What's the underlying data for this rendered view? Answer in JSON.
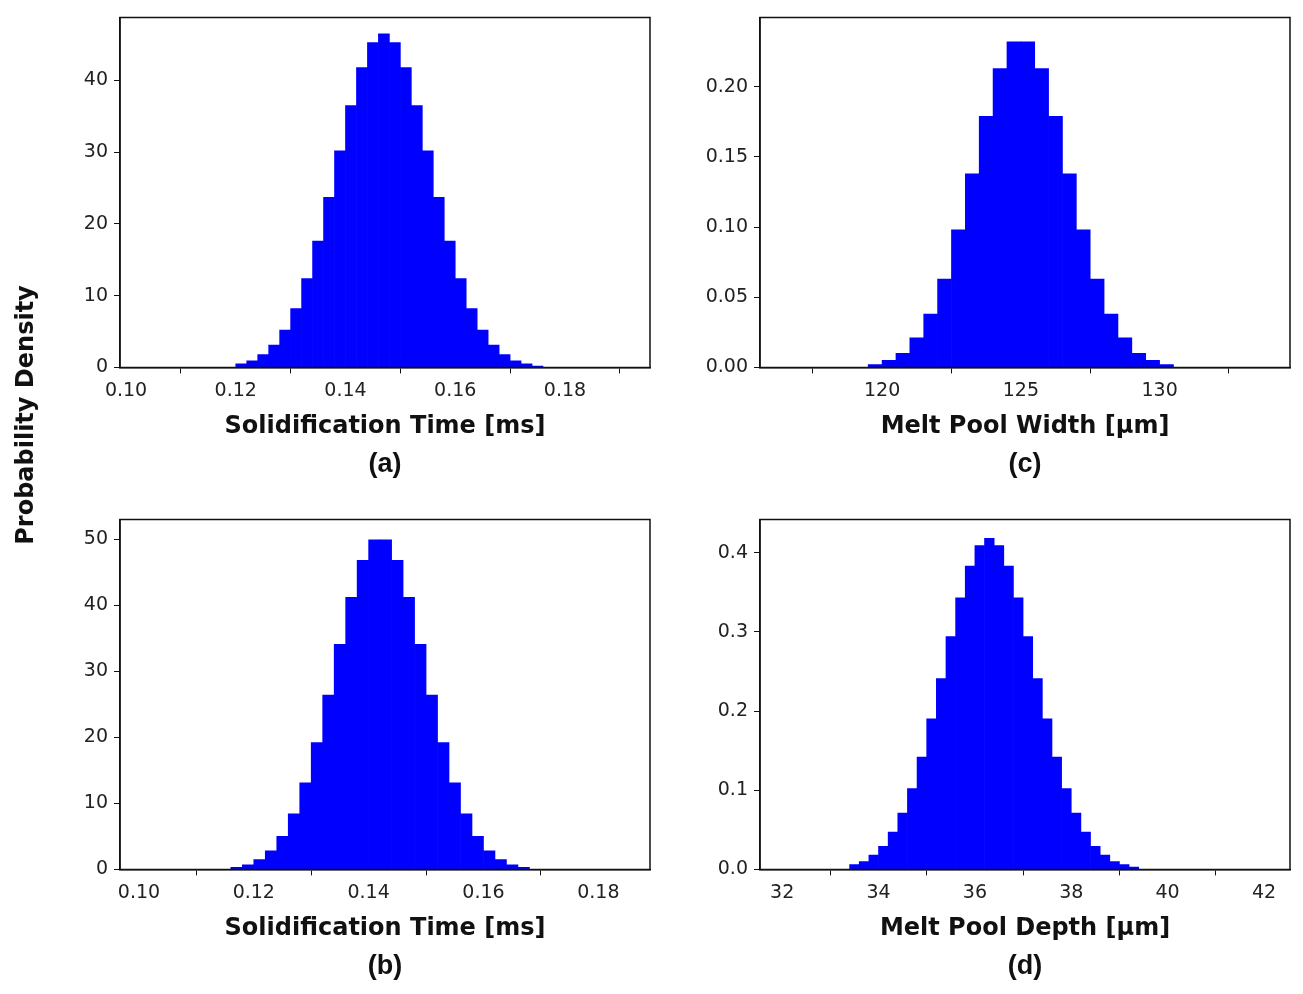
{
  "chart_data": [
    {
      "type": "histogram",
      "ylabel": "Probability Density",
      "xlabel": "Solidification Time [ms]",
      "annotations": [
        "(a)"
      ],
      "color": "#0000ff",
      "grid": false,
      "legend": false,
      "bins": [
        0.12,
        0.122,
        0.124,
        0.126,
        0.128,
        0.13,
        0.132,
        0.134,
        0.136,
        0.138,
        0.14,
        0.142,
        0.144,
        0.146,
        0.148,
        0.15,
        0.152,
        0.154,
        0.156,
        0.158,
        0.16,
        0.162,
        0.164,
        0.166,
        0.168,
        0.17,
        0.172,
        0.174,
        0.176
      ],
      "values": [
        0.5,
        0.9,
        1.8,
        3.1,
        5.2,
        8.2,
        12.4,
        17.6,
        23.7,
        30.2,
        36.5,
        41.8,
        45.3,
        46.5,
        45.3,
        41.8,
        36.5,
        30.2,
        23.7,
        17.6,
        12.4,
        8.2,
        5.2,
        3.1,
        1.8,
        0.9,
        0.5,
        0.2
      ],
      "xlim": [
        0.0989,
        0.1955
      ],
      "xticks": [
        {
          "value": 0.1,
          "label": "0.10"
        },
        0.12,
        0.14,
        0.16,
        0.18
      ],
      "ylim": [
        0,
        48.8
      ],
      "yticks": [
        0,
        10,
        20,
        30,
        40
      ]
    },
    {
      "type": "histogram",
      "xlabel": "Melt Pool Width [µm]",
      "annotations": [
        "(c)"
      ],
      "color": "#0000ff",
      "grid": false,
      "legend": false,
      "bins": [
        119.5,
        120,
        120.5,
        121,
        121.5,
        122,
        122.5,
        123,
        123.5,
        124,
        124.5,
        125,
        125.5,
        126,
        126.5,
        127,
        127.5,
        128,
        128.5,
        129,
        129.5,
        130,
        130.5
      ],
      "values": [
        0.002,
        0.005,
        0.01,
        0.021,
        0.038,
        0.063,
        0.098,
        0.138,
        0.179,
        0.213,
        0.232,
        0.232,
        0.213,
        0.179,
        0.138,
        0.098,
        0.063,
        0.038,
        0.021,
        0.01,
        0.005,
        0.002
      ],
      "xlim": [
        115.6,
        134.7
      ],
      "xticks": [
        120,
        125,
        130
      ],
      "ylim": [
        0,
        0.2495
      ],
      "yticks": [
        {
          "value": 0,
          "label": "0.00"
        },
        {
          "value": 0.05,
          "label": "0.05"
        },
        {
          "value": 0.1,
          "label": "0.10"
        },
        {
          "value": 0.15,
          "label": "0.15"
        },
        {
          "value": 0.2,
          "label": "0.20"
        }
      ]
    },
    {
      "type": "histogram",
      "xlabel": "Solidification Time [ms]",
      "annotations": [
        "(b)"
      ],
      "color": "#0000ff",
      "grid": false,
      "legend": false,
      "bins": [
        0.116,
        0.118,
        0.12,
        0.122,
        0.124,
        0.126,
        0.128,
        0.13,
        0.132,
        0.134,
        0.136,
        0.138,
        0.14,
        0.142,
        0.144,
        0.146,
        0.148,
        0.15,
        0.152,
        0.154,
        0.156,
        0.158,
        0.16,
        0.162,
        0.164,
        0.166,
        0.168
      ],
      "values": [
        0.3,
        0.7,
        1.5,
        2.8,
        5.0,
        8.4,
        13.1,
        19.2,
        26.4,
        34.1,
        41.2,
        46.8,
        49.9,
        49.9,
        46.8,
        41.2,
        34.1,
        26.4,
        19.2,
        13.1,
        8.4,
        5.0,
        2.8,
        1.5,
        0.7,
        0.3
      ],
      "xlim": [
        0.0967,
        0.189
      ],
      "xticks": [
        {
          "value": 0.1,
          "label": "0.10"
        },
        0.12,
        0.14,
        0.16,
        0.18
      ],
      "ylim": [
        0,
        53
      ],
      "yticks": [
        0,
        10,
        20,
        30,
        40,
        50
      ]
    },
    {
      "type": "histogram",
      "xlabel": "Melt Pool Depth [µm]",
      "annotations": [
        "(d)"
      ],
      "color": "#0000ff",
      "grid": false,
      "legend": false,
      "bins": [
        33.4,
        33.6,
        33.8,
        34.0,
        34.2,
        34.4,
        34.6,
        34.8,
        35.0,
        35.2,
        35.4,
        35.6,
        35.8,
        36.0,
        36.2,
        36.4,
        36.6,
        36.8,
        37.0,
        37.2,
        37.4,
        37.6,
        37.8,
        38.0,
        38.2,
        38.4,
        38.6,
        38.8,
        39.0,
        39.2,
        39.4
      ],
      "values": [
        0.006,
        0.01,
        0.018,
        0.029,
        0.047,
        0.071,
        0.102,
        0.142,
        0.19,
        0.241,
        0.294,
        0.343,
        0.383,
        0.409,
        0.418,
        0.409,
        0.383,
        0.343,
        0.294,
        0.241,
        0.19,
        0.142,
        0.102,
        0.071,
        0.047,
        0.029,
        0.018,
        0.01,
        0.006,
        0.003
      ],
      "xlim": [
        31.54,
        42.54
      ],
      "xticks": [
        32,
        34,
        36,
        38,
        40,
        42
      ],
      "ylim": [
        0,
        0.442
      ],
      "yticks": [
        {
          "value": 0,
          "label": "0.0"
        },
        {
          "value": 0.1,
          "label": "0.1"
        },
        {
          "value": 0.2,
          "label": "0.2"
        },
        {
          "value": 0.3,
          "label": "0.3"
        },
        {
          "value": 0.4,
          "label": "0.4"
        }
      ]
    }
  ]
}
